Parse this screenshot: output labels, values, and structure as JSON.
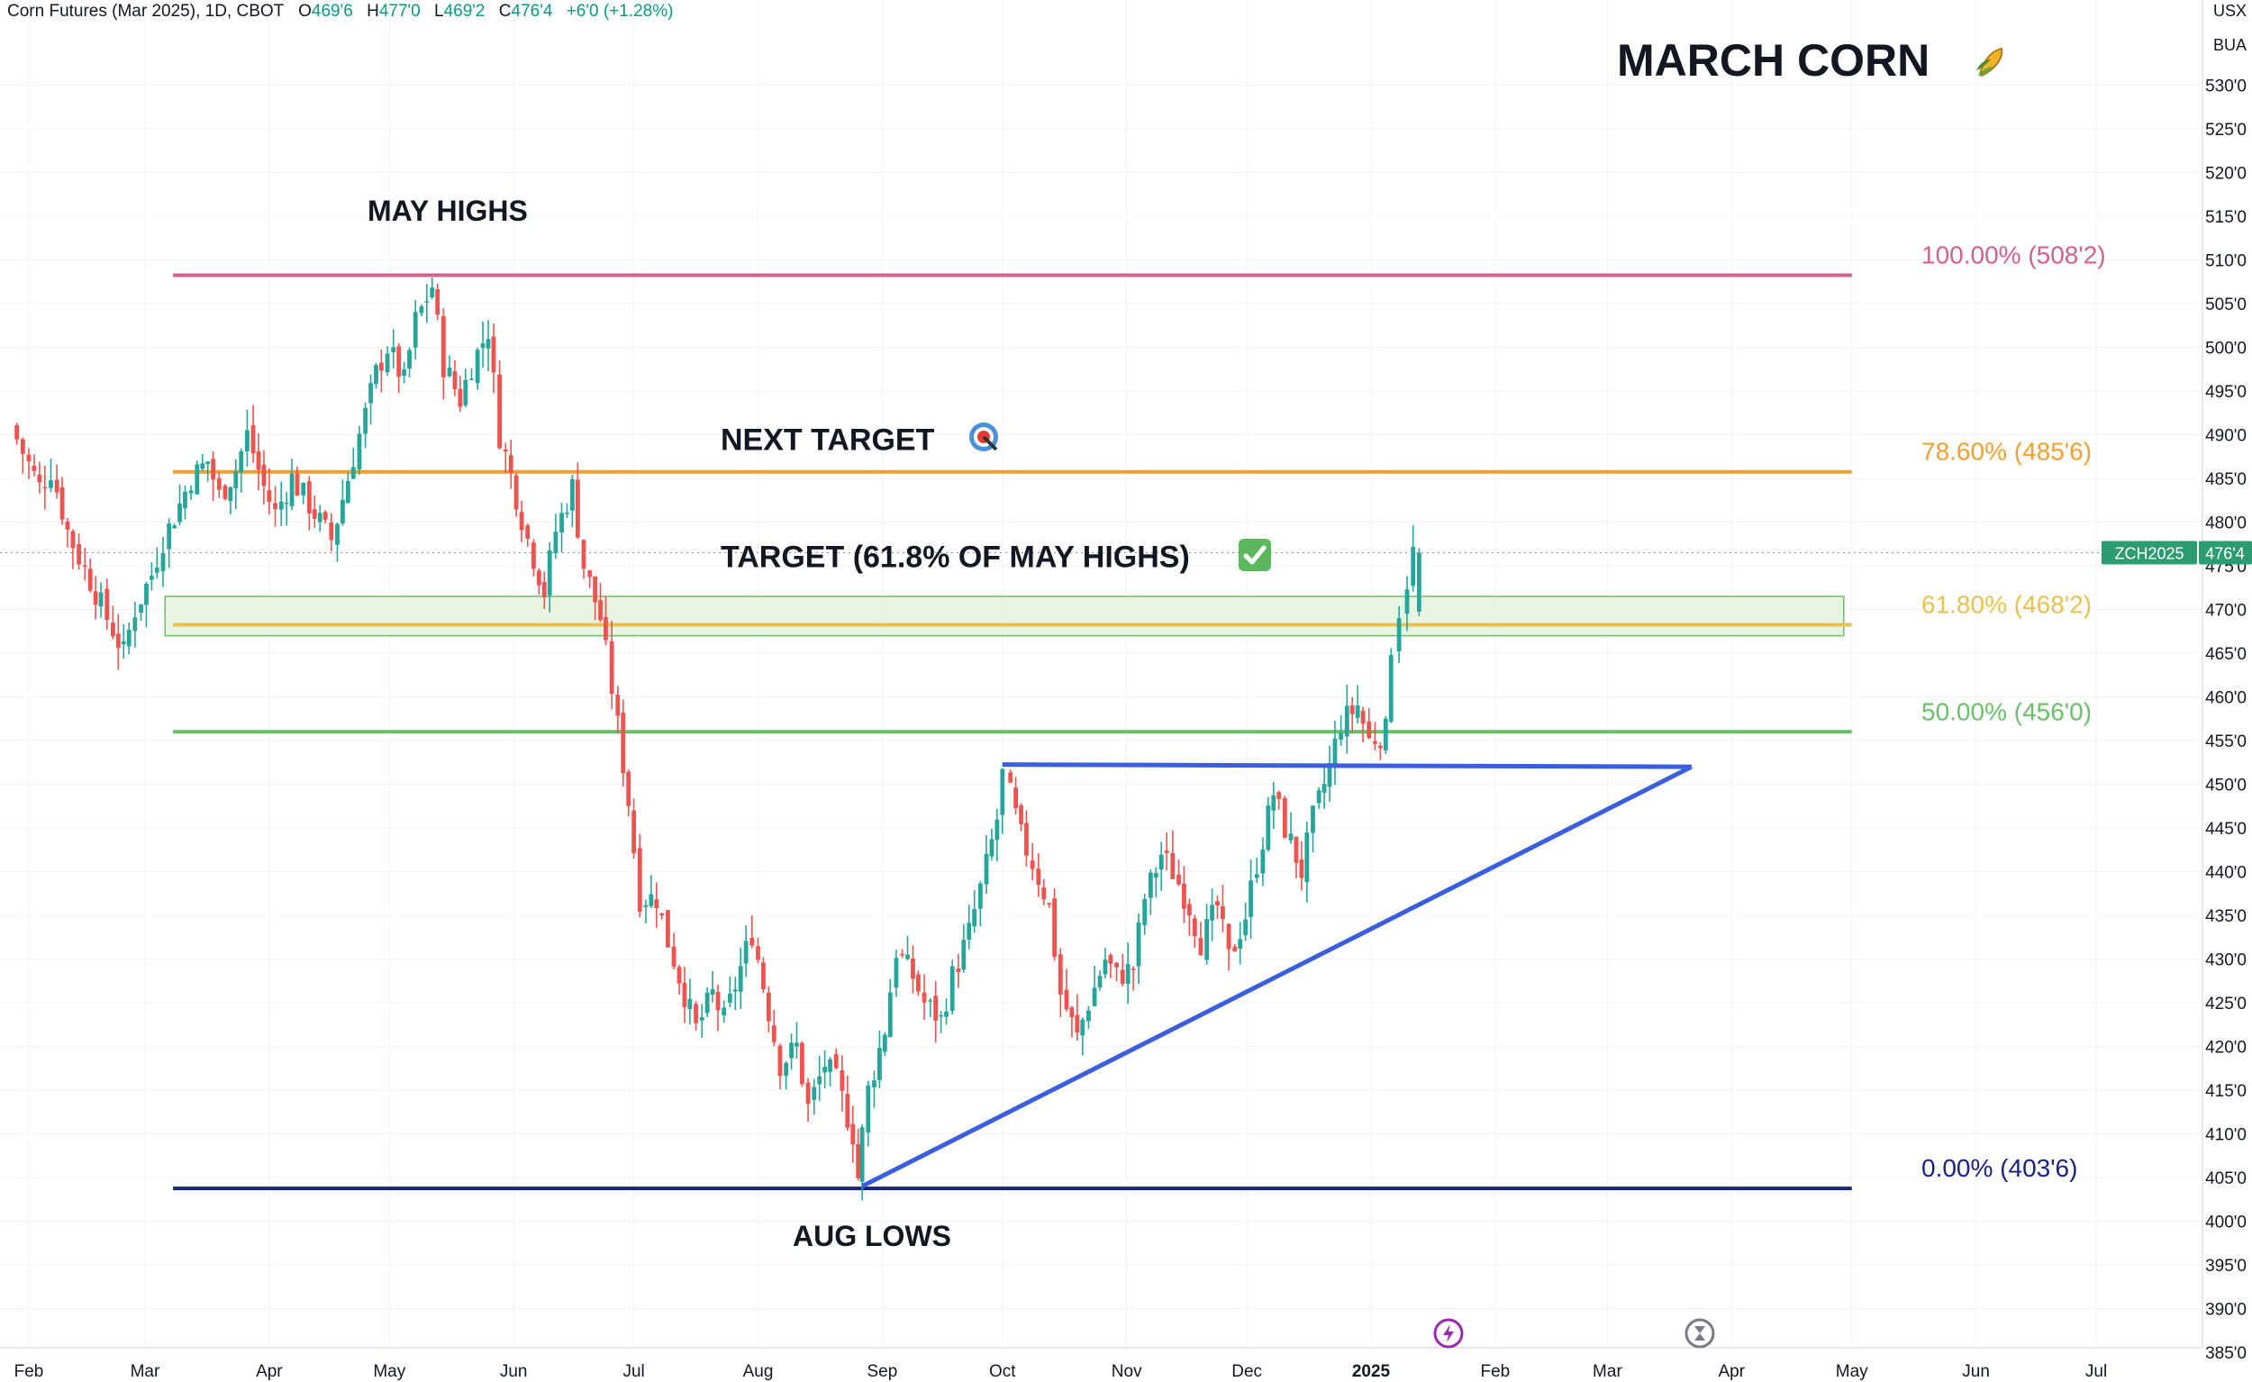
{
  "header": {
    "symbol_desc": "Corn Futures (Mar 2025), 1D, CBOT",
    "open_label": "O",
    "open": "469'6",
    "high_label": "H",
    "high": "477'0",
    "low_label": "L",
    "low": "469'2",
    "close_label": "C",
    "close": "476'4",
    "change": "+6'0 (+1.28%)"
  },
  "axis_units": {
    "currency": "USX",
    "unit": "BUA"
  },
  "title": "MARCH CORN",
  "icons": [
    "corn-icon",
    "target-icon",
    "check-icon",
    "lightning-icon",
    "hourglass-icon"
  ],
  "annotations": {
    "may_highs": "MAY HIGHS",
    "next_target": "NEXT TARGET",
    "target_hit": "TARGET (61.8% OF MAY HIGHS)",
    "aug_lows": "AUG LOWS"
  },
  "price_badge": {
    "symbol": "ZCH2025",
    "price": "476'4",
    "value": 476.5
  },
  "colors": {
    "up": "#26a69a",
    "down": "#ef5350",
    "fib_100": "#d0628e",
    "fib_786": "#f0a030",
    "fib_618": "#e8c24a",
    "fib_50": "#6abf69",
    "fib_0": "#1a237e",
    "trendline": "#3b5ede",
    "zone_fill": "#e3f2dc",
    "zone_stroke": "#6abf69",
    "badge": "#2e9c73"
  },
  "chart_data": {
    "type": "candlestick",
    "title": "MARCH CORN",
    "xlabel": "",
    "ylabel": "",
    "ylim": [
      384,
      537
    ],
    "x_tick_labels": [
      "Feb",
      "Mar",
      "Apr",
      "May",
      "Jun",
      "Jul",
      "Aug",
      "Sep",
      "Oct",
      "Nov",
      "Dec",
      "2025",
      "Feb",
      "Mar",
      "Apr",
      "May",
      "Jun",
      "Jul"
    ],
    "y_tick_labels": [
      "385'0",
      "390'0",
      "395'0",
      "400'0",
      "405'0",
      "410'0",
      "415'0",
      "420'0",
      "425'0",
      "430'0",
      "435'0",
      "440'0",
      "445'0",
      "450'0",
      "455'0",
      "460'0",
      "465'0",
      "470'0",
      "475'0",
      "480'0",
      "485'0",
      "490'0",
      "495'0",
      "500'0",
      "505'0",
      "510'0",
      "515'0",
      "520'0",
      "525'0",
      "530'0"
    ],
    "fib_levels": [
      {
        "label": "100.00% (508'2)",
        "value": 508.25
      },
      {
        "label": "78.60% (485'6)",
        "value": 485.75
      },
      {
        "label": "61.80% (468'2)",
        "value": 468.25
      },
      {
        "label": "50.00% (456'0)",
        "value": 456.0
      },
      {
        "label": "0.00% (403'6)",
        "value": 403.75
      }
    ],
    "fib_start": "2024-03-08",
    "fib_end": "2025-05-01",
    "target_zone": {
      "from": "2024-03-06",
      "to": "2025-05-01",
      "low": 467.0,
      "high": 471.5
    },
    "triangle": {
      "resistance": [
        [
          "2024-10-01",
          452.25
        ],
        [
          "2025-03-22",
          452.0
        ]
      ],
      "support": [
        [
          "2024-08-27",
          404.0
        ],
        [
          "2025-03-22",
          452.0
        ]
      ]
    },
    "closes": [
      [
        "2024-01-29",
        491
      ],
      [
        "2024-02-01",
        488
      ],
      [
        "2024-02-05",
        484
      ],
      [
        "2024-02-08",
        486
      ],
      [
        "2024-02-12",
        479
      ],
      [
        "2024-02-15",
        476
      ],
      [
        "2024-02-19",
        472
      ],
      [
        "2024-02-22",
        469
      ],
      [
        "2024-02-26",
        465
      ],
      [
        "2024-02-29",
        470
      ],
      [
        "2024-03-04",
        474
      ],
      [
        "2024-03-07",
        478
      ],
      [
        "2024-03-11",
        482
      ],
      [
        "2024-03-14",
        485
      ],
      [
        "2024-03-18",
        487
      ],
      [
        "2024-03-21",
        483
      ],
      [
        "2024-03-25",
        486
      ],
      [
        "2024-03-28",
        490
      ],
      [
        "2024-04-01",
        484
      ],
      [
        "2024-04-04",
        481
      ],
      [
        "2024-04-08",
        485
      ],
      [
        "2024-04-11",
        483
      ],
      [
        "2024-04-15",
        480
      ],
      [
        "2024-04-18",
        478
      ],
      [
        "2024-04-22",
        485
      ],
      [
        "2024-04-25",
        490
      ],
      [
        "2024-04-29",
        497
      ],
      [
        "2024-05-02",
        500
      ],
      [
        "2024-05-06",
        496
      ],
      [
        "2024-05-09",
        503
      ],
      [
        "2024-05-13",
        507
      ],
      [
        "2024-05-16",
        498
      ],
      [
        "2024-05-20",
        494
      ],
      [
        "2024-05-23",
        498
      ],
      [
        "2024-05-27",
        502
      ],
      [
        "2024-05-30",
        490
      ],
      [
        "2024-06-03",
        483
      ],
      [
        "2024-06-06",
        478
      ],
      [
        "2024-06-10",
        472
      ],
      [
        "2024-06-13",
        479
      ],
      [
        "2024-06-17",
        484
      ],
      [
        "2024-06-20",
        475
      ],
      [
        "2024-06-24",
        469
      ],
      [
        "2024-06-27",
        461
      ],
      [
        "2024-07-01",
        448
      ],
      [
        "2024-07-04",
        437
      ],
      [
        "2024-07-08",
        437
      ],
      [
        "2024-07-11",
        432
      ],
      [
        "2024-07-15",
        426
      ],
      [
        "2024-07-18",
        422
      ],
      [
        "2024-07-22",
        426
      ],
      [
        "2024-07-25",
        423
      ],
      [
        "2024-07-29",
        429
      ],
      [
        "2024-08-01",
        433
      ],
      [
        "2024-08-05",
        424
      ],
      [
        "2024-08-08",
        418
      ],
      [
        "2024-08-12",
        420
      ],
      [
        "2024-08-15",
        413
      ],
      [
        "2024-08-19",
        418
      ],
      [
        "2024-08-22",
        416
      ],
      [
        "2024-08-26",
        410
      ],
      [
        "2024-08-27",
        405
      ],
      [
        "2024-08-30",
        415
      ],
      [
        "2024-09-03",
        422
      ],
      [
        "2024-09-06",
        431
      ],
      [
        "2024-09-10",
        428
      ],
      [
        "2024-09-13",
        425
      ],
      [
        "2024-09-17",
        423
      ],
      [
        "2024-09-20",
        428
      ],
      [
        "2024-09-24",
        433
      ],
      [
        "2024-09-27",
        438
      ],
      [
        "2024-10-01",
        446
      ],
      [
        "2024-10-03",
        451
      ],
      [
        "2024-10-07",
        444
      ],
      [
        "2024-10-10",
        441
      ],
      [
        "2024-10-14",
        436
      ],
      [
        "2024-10-17",
        426
      ],
      [
        "2024-10-21",
        421
      ],
      [
        "2024-10-24",
        425
      ],
      [
        "2024-10-28",
        430
      ],
      [
        "2024-10-31",
        428
      ],
      [
        "2024-11-04",
        429
      ],
      [
        "2024-11-07",
        437
      ],
      [
        "2024-11-11",
        442
      ],
      [
        "2024-11-14",
        440
      ],
      [
        "2024-11-18",
        436
      ],
      [
        "2024-11-21",
        432
      ],
      [
        "2024-11-25",
        436
      ],
      [
        "2024-11-28",
        430
      ],
      [
        "2024-12-02",
        435
      ],
      [
        "2024-12-05",
        441
      ],
      [
        "2024-12-09",
        449
      ],
      [
        "2024-12-12",
        445
      ],
      [
        "2024-12-16",
        440
      ],
      [
        "2024-12-19",
        446
      ],
      [
        "2024-12-23",
        452
      ],
      [
        "2024-12-26",
        457
      ],
      [
        "2024-12-30",
        459
      ],
      [
        "2025-01-02",
        455
      ],
      [
        "2025-01-06",
        456
      ],
      [
        "2025-01-08",
        466
      ],
      [
        "2025-01-10",
        470
      ],
      [
        "2025-01-13",
        476.5
      ]
    ]
  }
}
